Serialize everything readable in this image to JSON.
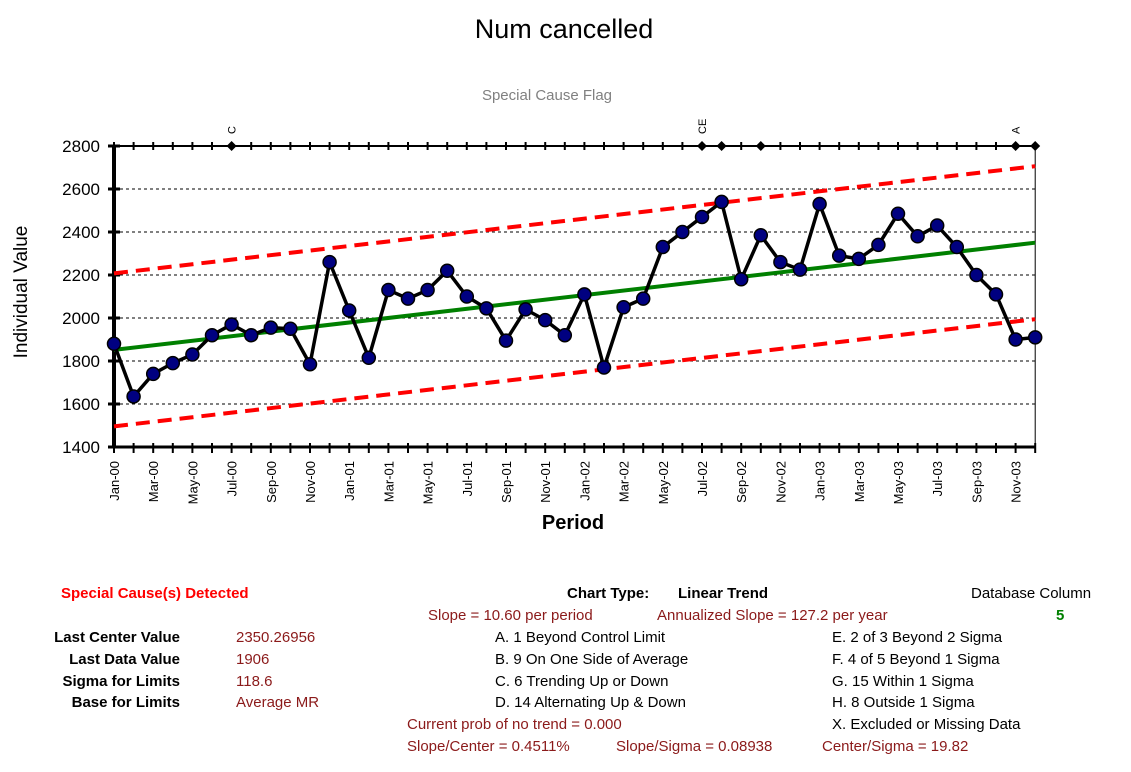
{
  "chart_data": {
    "type": "line",
    "title": "Num cancelled",
    "subtitle": "Special Cause Flag",
    "xlabel": "Period",
    "ylabel": "Individual Value",
    "ylim": [
      1400,
      2800
    ],
    "yticks": [
      1400,
      1600,
      1800,
      2000,
      2200,
      2400,
      2600,
      2800
    ],
    "grid": "horizontal dashed",
    "categories": [
      "Jan-00",
      "Feb-00",
      "Mar-00",
      "Apr-00",
      "May-00",
      "Jun-00",
      "Jul-00",
      "Aug-00",
      "Sep-00",
      "Oct-00",
      "Nov-00",
      "Dec-00",
      "Jan-01",
      "Feb-01",
      "Mar-01",
      "Apr-01",
      "May-01",
      "Jun-01",
      "Jul-01",
      "Aug-01",
      "Sep-01",
      "Oct-01",
      "Nov-01",
      "Dec-01",
      "Jan-02",
      "Feb-02",
      "Mar-02",
      "Apr-02",
      "May-02",
      "Jun-02",
      "Jul-02",
      "Aug-02",
      "Sep-02",
      "Oct-02",
      "Nov-02",
      "Dec-02",
      "Jan-03",
      "Feb-03",
      "Mar-03",
      "Apr-03",
      "May-03",
      "Jun-03",
      "Jul-03",
      "Aug-03",
      "Sep-03",
      "Oct-03",
      "Nov-03",
      "Dec-03"
    ],
    "xtick_labels": [
      "Jan-00",
      "Mar-00",
      "May-00",
      "Jul-00",
      "Sep-00",
      "Nov-00",
      "Jan-01",
      "Mar-01",
      "May-01",
      "Jul-01",
      "Sep-01",
      "Nov-01",
      "Jan-02",
      "Mar-02",
      "May-02",
      "Jul-02",
      "Sep-02",
      "Nov-02",
      "Jan-03",
      "Mar-03",
      "May-03",
      "Jul-03",
      "Sep-03",
      "Nov-03"
    ],
    "series": [
      {
        "role": "data",
        "values": [
          1880,
          1635,
          1740,
          1790,
          1830,
          1920,
          1970,
          1920,
          1955,
          1950,
          1785,
          2260,
          2035,
          1815,
          2130,
          2090,
          2130,
          2220,
          2100,
          2045,
          1895,
          2040,
          1990,
          1920,
          2110,
          1770,
          2050,
          2090,
          2330,
          2400,
          2470,
          2540,
          2180,
          2385,
          2260,
          2225,
          2530,
          2290,
          2275,
          2340,
          2485,
          2380,
          2430,
          2330,
          2200,
          2110,
          1900,
          1910
        ]
      },
      {
        "role": "center",
        "start": 1851.8,
        "end": 2350.27
      },
      {
        "role": "upper-limit",
        "start": 2207.6,
        "end": 2706.1
      },
      {
        "role": "lower-limit",
        "start": 1496.0,
        "end": 1994.5
      }
    ],
    "special_cause_flags": [
      {
        "index": 6,
        "label": "C"
      },
      {
        "index": 30,
        "label": "CE"
      },
      {
        "index": 31,
        "label": ""
      },
      {
        "index": 33,
        "label": ""
      },
      {
        "index": 46,
        "label": "A"
      },
      {
        "index": 47,
        "label": ""
      }
    ],
    "colors": {
      "data_line": "#000000",
      "marker_fill": "#000080",
      "center_line": "#008000",
      "limit_lines": "#ff0000"
    }
  },
  "info": {
    "special_cause_detected": "Special Cause(s) Detected",
    "chart_type_label": "Chart Type:",
    "chart_type_value": "Linear Trend",
    "database_column_label": "Database Column",
    "database_column_value": "5",
    "slope": "Slope = 10.60 per period",
    "annualized_slope": "Annualized Slope = 127.2 per year",
    "last_center_label": "Last Center Value",
    "last_center_value": "2350.26956",
    "last_data_label": "Last Data Value",
    "last_data_value": "1906",
    "sigma_label": "Sigma for Limits",
    "sigma_value": "118.6",
    "base_label": "Base for Limits",
    "base_value": "Average MR",
    "rule_a": "A.  1 Beyond Control Limit",
    "rule_b": "B.  9 On One Side of Average",
    "rule_c": "C.  6 Trending Up or Down",
    "rule_d": "D.  14 Alternating  Up & Down",
    "rule_e": "E.   2 of 3 Beyond 2 Sigma",
    "rule_f": "F.   4 of 5 Beyond 1 Sigma",
    "rule_g": "G.   15 Within 1 Sigma",
    "rule_h": "H.   8 Outside 1 Sigma",
    "rule_x": "X.   Excluded or Missing Data",
    "prob_no_trend": "Current prob of no trend = 0.000",
    "slope_center": "Slope/Center = 0.4511%",
    "slope_sigma": "Slope/Sigma = 0.08938",
    "center_sigma": "Center/Sigma = 19.82"
  }
}
